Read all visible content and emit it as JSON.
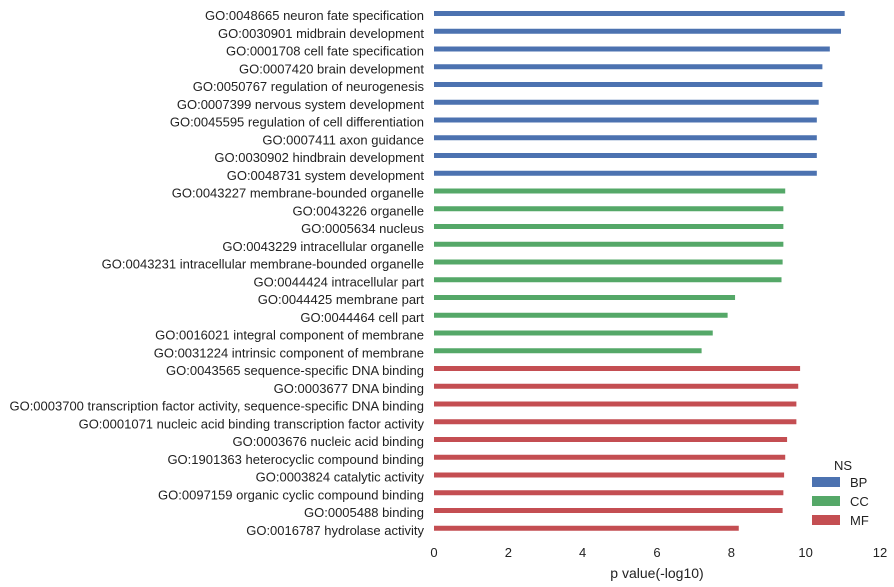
{
  "chart_data": {
    "type": "bar",
    "orientation": "horizontal",
    "xlabel": "p value(-log10)",
    "ylabel": "",
    "xlim": [
      0,
      12
    ],
    "xticks": [
      0,
      2,
      4,
      6,
      8,
      10,
      12
    ],
    "grid": false,
    "legend": {
      "title": "NS",
      "position": "bottom-right",
      "entries": [
        {
          "name": "BP",
          "color": "#4c72b0"
        },
        {
          "name": "CC",
          "color": "#55a868"
        },
        {
          "name": "MF",
          "color": "#c44e52"
        }
      ]
    },
    "categories": [
      "GO:0048665 neuron fate specification",
      "GO:0030901 midbrain development",
      "GO:0001708 cell fate specification",
      "GO:0007420 brain development",
      "GO:0050767 regulation of neurogenesis",
      "GO:0007399 nervous system development",
      "GO:0045595 regulation of cell differentiation",
      "GO:0007411 axon guidance",
      "GO:0030902 hindbrain development",
      "GO:0048731 system development",
      "GO:0043227 membrane-bounded organelle",
      "GO:0043226 organelle",
      "GO:0005634 nucleus",
      "GO:0043229 intracellular organelle",
      "GO:0043231 intracellular membrane-bounded organelle",
      "GO:0044424 intracellular part",
      "GO:0044425 membrane part",
      "GO:0044464 cell part",
      "GO:0016021 integral component of membrane",
      "GO:0031224 intrinsic component of membrane",
      "GO:0043565 sequence-specific DNA binding",
      "GO:0003677 DNA binding",
      "GO:0003700 transcription factor activity, sequence-specific DNA binding",
      "GO:0001071 nucleic acid binding transcription factor activity",
      "GO:0003676 nucleic acid binding",
      "GO:1901363 heterocyclic compound binding",
      "GO:0003824 catalytic activity",
      "GO:0097159 organic cyclic compound binding",
      "GO:0005488 binding",
      "GO:0016787 hydrolase activity"
    ],
    "values": [
      11.05,
      10.95,
      10.65,
      10.45,
      10.45,
      10.35,
      10.3,
      10.3,
      10.3,
      10.3,
      9.45,
      9.4,
      9.4,
      9.4,
      9.38,
      9.35,
      8.1,
      7.9,
      7.5,
      7.2,
      9.85,
      9.8,
      9.75,
      9.75,
      9.5,
      9.45,
      9.42,
      9.4,
      9.38,
      8.2
    ],
    "groups": [
      "BP",
      "BP",
      "BP",
      "BP",
      "BP",
      "BP",
      "BP",
      "BP",
      "BP",
      "BP",
      "CC",
      "CC",
      "CC",
      "CC",
      "CC",
      "CC",
      "CC",
      "CC",
      "CC",
      "CC",
      "MF",
      "MF",
      "MF",
      "MF",
      "MF",
      "MF",
      "MF",
      "MF",
      "MF",
      "MF"
    ]
  }
}
